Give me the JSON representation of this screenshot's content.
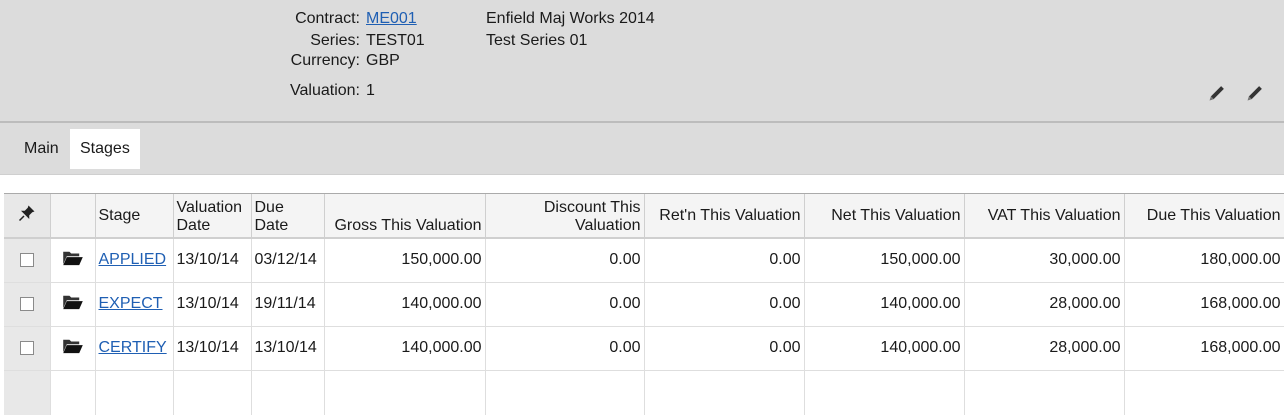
{
  "header": {
    "contract_label": "Contract:",
    "contract_value": "ME001",
    "contract_desc": "Enfield Maj Works 2014",
    "series_label": "Series:",
    "series_value": "TEST01",
    "series_desc": "Test Series 01",
    "currency_label": "Currency:",
    "currency_value": "GBP",
    "valuation_label": "Valuation:",
    "valuation_value": "1"
  },
  "icons": {
    "pin": "pin-icon",
    "folder": "folder-icon",
    "edit": "pencil-icon"
  },
  "tabs": [
    {
      "label": "Main",
      "active": false
    },
    {
      "label": "Stages",
      "active": true
    }
  ],
  "table": {
    "columns": {
      "stage": "Stage",
      "valuation_date": "Valuation Date",
      "due_date": "Due Date",
      "gross": "Gross This Valuation",
      "discount": "Discount This Valuation",
      "retn": "Ret'n This Valuation",
      "net": "Net This Valuation",
      "vat": "VAT This Valuation",
      "due": "Due This Valuation"
    },
    "rows": [
      {
        "stage": "APPLIED",
        "valuation_date": "13/10/14",
        "due_date": "03/12/14",
        "gross": "150,000.00",
        "discount": "0.00",
        "retn": "0.00",
        "net": "150,000.00",
        "vat": "30,000.00",
        "due": "180,000.00"
      },
      {
        "stage": "EXPECT",
        "valuation_date": "13/10/14",
        "due_date": "19/11/14",
        "gross": "140,000.00",
        "discount": "0.00",
        "retn": "0.00",
        "net": "140,000.00",
        "vat": "28,000.00",
        "due": "168,000.00"
      },
      {
        "stage": "CERTIFY",
        "valuation_date": "13/10/14",
        "due_date": "13/10/14",
        "gross": "140,000.00",
        "discount": "0.00",
        "retn": "0.00",
        "net": "140,000.00",
        "vat": "28,000.00",
        "due": "168,000.00"
      }
    ]
  },
  "colors": {
    "header_bg": "#dcdcdc",
    "link": "#1f5fb3",
    "grid_header_bg": "#f4f4f4",
    "selector_col_bg": "#e8e8e8"
  }
}
